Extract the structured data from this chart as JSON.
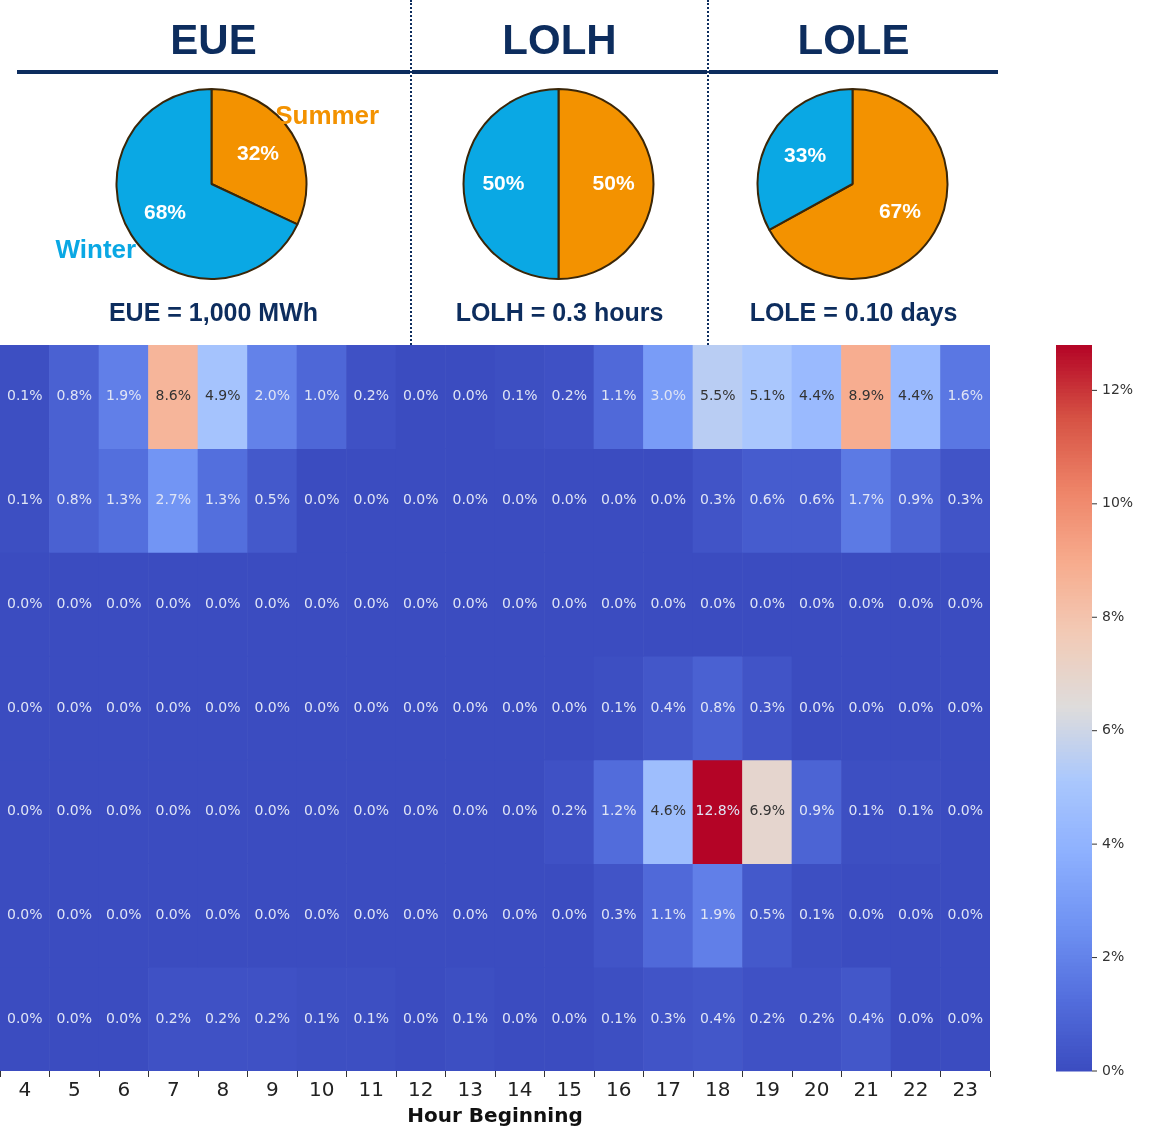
{
  "chart_data": [
    {
      "type": "pie",
      "title": "EUE",
      "categories": [
        "Summer",
        "Winter"
      ],
      "values": [
        32,
        68
      ],
      "colors": [
        "#f39200",
        "#0aa8e4"
      ],
      "value_labels": [
        "32%",
        "68%"
      ],
      "annotations": [
        "EUE = 1,000 MWh"
      ]
    },
    {
      "type": "pie",
      "title": "LOLH",
      "categories": [
        null,
        null
      ],
      "values": [
        50,
        50
      ],
      "colors": [
        "#f39200",
        "#0aa8e4"
      ],
      "value_labels": [
        "50%",
        "50%"
      ],
      "annotations": [
        "LOLH = 0.3 hours"
      ]
    },
    {
      "type": "pie",
      "title": "LOLE",
      "categories": [
        null,
        null
      ],
      "values": [
        67,
        33
      ],
      "colors": [
        "#f39200",
        "#0aa8e4"
      ],
      "value_labels": [
        "67%",
        "33%"
      ],
      "annotations": [
        "LOLE = 0.10 days"
      ]
    },
    {
      "type": "heatmap",
      "xlabel": "Hour Beginning",
      "tick_labels": "x",
      "categories": [
        "4",
        "5",
        "6",
        "7",
        "8",
        "9",
        "10",
        "11",
        "12",
        "13",
        "14",
        "15",
        "16",
        "17",
        "18",
        "19",
        "20",
        "21",
        "22",
        "23"
      ],
      "y_categories": [
        null,
        null,
        null,
        null,
        null,
        null,
        null
      ],
      "cells": [
        [
          0.1,
          0.8,
          1.9,
          8.6,
          4.9,
          2.0,
          1.0,
          0.2,
          0.0,
          0.0,
          0.1,
          0.2,
          1.1,
          3.0,
          5.5,
          5.1,
          4.4,
          8.9,
          4.4,
          1.6
        ],
        [
          0.1,
          0.8,
          1.3,
          2.7,
          1.3,
          0.5,
          0.0,
          0.0,
          0.0,
          0.0,
          0.0,
          0.0,
          0.0,
          0.0,
          0.3,
          0.6,
          0.6,
          1.7,
          0.9,
          0.3
        ],
        [
          0.0,
          0.0,
          0.0,
          0.0,
          0.0,
          0.0,
          0.0,
          0.0,
          0.0,
          0.0,
          0.0,
          0.0,
          0.0,
          0.0,
          0.0,
          0.0,
          0.0,
          0.0,
          0.0,
          0.0
        ],
        [
          0.0,
          0.0,
          0.0,
          0.0,
          0.0,
          0.0,
          0.0,
          0.0,
          0.0,
          0.0,
          0.0,
          0.0,
          0.1,
          0.4,
          0.8,
          0.3,
          0.0,
          0.0,
          0.0,
          0.0
        ],
        [
          0.0,
          0.0,
          0.0,
          0.0,
          0.0,
          0.0,
          0.0,
          0.0,
          0.0,
          0.0,
          0.0,
          0.2,
          1.2,
          4.6,
          12.8,
          6.9,
          0.9,
          0.1,
          0.1,
          0.0
        ],
        [
          0.0,
          0.0,
          0.0,
          0.0,
          0.0,
          0.0,
          0.0,
          0.0,
          0.0,
          0.0,
          0.0,
          0.0,
          0.3,
          1.1,
          1.9,
          0.5,
          0.1,
          0.0,
          0.0,
          0.0
        ],
        [
          0.0,
          0.0,
          0.0,
          0.2,
          0.2,
          0.2,
          0.1,
          0.1,
          0.0,
          0.1,
          0.0,
          0.0,
          0.1,
          0.3,
          0.4,
          0.2,
          0.2,
          0.4,
          0.0,
          0.0
        ]
      ],
      "cell_labels": [
        [
          "0.1%",
          "0.8%",
          "1.9%",
          "8.6%",
          "4.9%",
          "2.0%",
          "1.0%",
          "0.2%",
          "0.0%",
          "0.0%",
          "0.1%",
          "0.2%",
          "1.1%",
          "3.0%",
          "5.5%",
          "5.1%",
          "4.4%",
          "8.9%",
          "4.4%",
          "1.6%"
        ],
        [
          "0.1%",
          "0.8%",
          "1.3%",
          "2.7%",
          "1.3%",
          "0.5%",
          "0.0%",
          "0.0%",
          "0.0%",
          "0.0%",
          "0.0%",
          "0.0%",
          "0.0%",
          "0.0%",
          "0.3%",
          "0.6%",
          "0.6%",
          "1.7%",
          "0.9%",
          "0.3%"
        ],
        [
          "0.0%",
          "0.0%",
          "0.0%",
          "0.0%",
          "0.0%",
          "0.0%",
          "0.0%",
          "0.0%",
          "0.0%",
          "0.0%",
          "0.0%",
          "0.0%",
          "0.0%",
          "0.0%",
          "0.0%",
          "0.0%",
          "0.0%",
          "0.0%",
          "0.0%",
          "0.0%"
        ],
        [
          "0.0%",
          "0.0%",
          "0.0%",
          "0.0%",
          "0.0%",
          "0.0%",
          "0.0%",
          "0.0%",
          "0.0%",
          "0.0%",
          "0.0%",
          "0.0%",
          "0.1%",
          "0.4%",
          "0.8%",
          "0.3%",
          "0.0%",
          "0.0%",
          "0.0%",
          "0.0%"
        ],
        [
          "0.0%",
          "0.0%",
          "0.0%",
          "0.0%",
          "0.0%",
          "0.0%",
          "0.0%",
          "0.0%",
          "0.0%",
          "0.0%",
          "0.0%",
          "0.2%",
          "1.2%",
          "4.6%",
          "12.8%",
          "6.9%",
          "0.9%",
          "0.1%",
          "0.1%",
          "0.0%"
        ],
        [
          "0.0%",
          "0.0%",
          "0.0%",
          "0.0%",
          "0.0%",
          "0.0%",
          "0.0%",
          "0.0%",
          "0.0%",
          "0.0%",
          "0.0%",
          "0.0%",
          "0.3%",
          "1.1%",
          "1.9%",
          "0.5%",
          "0.1%",
          "0.0%",
          "0.0%",
          "0.0%"
        ],
        [
          "0.0%",
          "0.0%",
          "0.0%",
          "0.2%",
          "0.2%",
          "0.2%",
          "0.1%",
          "0.1%",
          "0.0%",
          "0.1%",
          "0.0%",
          "0.0%",
          "0.1%",
          "0.3%",
          "0.4%",
          "0.2%",
          "0.2%",
          "0.4%",
          "0.0%",
          "0.0%"
        ]
      ],
      "clim": [
        0,
        12.8
      ],
      "cticks": [
        {
          "value": 0,
          "label": "0%"
        },
        {
          "value": 2,
          "label": "2%"
        },
        {
          "value": 4,
          "label": "4%"
        },
        {
          "value": 6,
          "label": "6%"
        },
        {
          "value": 8,
          "label": "8%"
        },
        {
          "value": 10,
          "label": "10%"
        },
        {
          "value": 12,
          "label": "12%"
        }
      ]
    }
  ]
}
